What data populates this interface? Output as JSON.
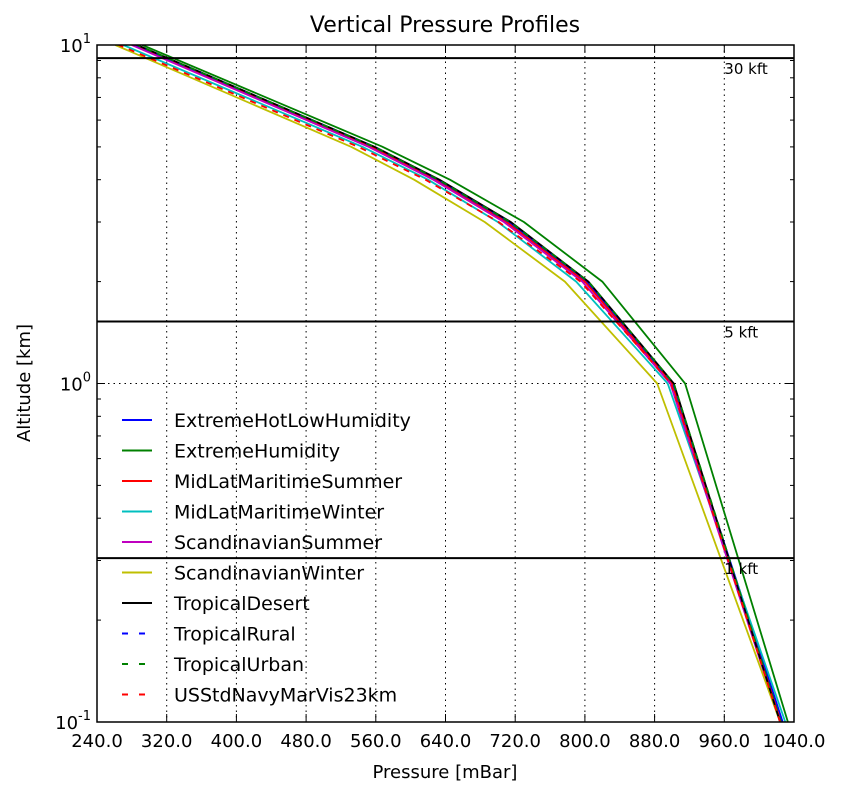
{
  "chart_data": {
    "type": "line",
    "title": "Vertical Pressure Profiles",
    "xlabel": "Pressure [mBar]",
    "ylabel": "Altitude [km]",
    "xlim": [
      240,
      1040
    ],
    "ylim": [
      0.1,
      10
    ],
    "yscale": "log",
    "grid": true,
    "legend_position": "lower-left",
    "x_ticks": [
      240,
      320,
      400,
      480,
      560,
      640,
      720,
      800,
      880,
      960,
      1040
    ],
    "x_tick_labels": [
      "240.0",
      "320.0",
      "400.0",
      "480.0",
      "560.0",
      "640.0",
      "720.0",
      "800.0",
      "880.0",
      "960.0",
      "1040.0"
    ],
    "y_ticks": [
      {
        "value": 0.1,
        "base": "10",
        "exp": "-1"
      },
      {
        "value": 1,
        "base": "10",
        "exp": "0"
      },
      {
        "value": 10,
        "base": "10",
        "exp": "1"
      }
    ],
    "hlines": [
      {
        "y": 9.144,
        "label": "30 kft"
      },
      {
        "y": 1.524,
        "label": "5 kft"
      },
      {
        "y": 0.3048,
        "label": "1 kft"
      }
    ],
    "series": [
      {
        "name": "ExtremeHotLowHumidity",
        "color": "#0000ff",
        "dash": "solid",
        "points": [
          [
            1027,
            0.1
          ],
          [
            900,
            1
          ],
          [
            802,
            2
          ],
          [
            712,
            3
          ],
          [
            630,
            4
          ],
          [
            557,
            5
          ],
          [
            283,
            10
          ]
        ]
      },
      {
        "name": "ExtremeHumidity",
        "color": "#008000",
        "dash": "solid",
        "points": [
          [
            1033,
            0.1
          ],
          [
            915,
            1
          ],
          [
            820,
            2
          ],
          [
            730,
            3
          ],
          [
            645,
            4
          ],
          [
            568,
            5
          ],
          [
            292,
            10
          ]
        ]
      },
      {
        "name": "MidLatMaritimeSummer",
        "color": "#ff0000",
        "dash": "solid",
        "points": [
          [
            1025,
            0.1
          ],
          [
            900,
            1
          ],
          [
            800,
            2
          ],
          [
            710,
            3
          ],
          [
            628,
            4
          ],
          [
            555,
            5
          ],
          [
            283,
            10
          ]
        ]
      },
      {
        "name": "MidLatMaritimeWinter",
        "color": "#00bfbf",
        "dash": "solid",
        "points": [
          [
            1030,
            0.1
          ],
          [
            895,
            1
          ],
          [
            790,
            2
          ],
          [
            700,
            3
          ],
          [
            620,
            4
          ],
          [
            545,
            5
          ],
          [
            270,
            10
          ]
        ]
      },
      {
        "name": "ScandinavianSummer",
        "color": "#bf00bf",
        "dash": "solid",
        "points": [
          [
            1024,
            0.1
          ],
          [
            898,
            1
          ],
          [
            797,
            2
          ],
          [
            707,
            3
          ],
          [
            626,
            4
          ],
          [
            552,
            5
          ],
          [
            280,
            10
          ]
        ]
      },
      {
        "name": "ScandinavianWinter",
        "color": "#bfbf00",
        "dash": "solid",
        "points": [
          [
            1024,
            0.1
          ],
          [
            883,
            1
          ],
          [
            777,
            2
          ],
          [
            685,
            3
          ],
          [
            604,
            4
          ],
          [
            532,
            5
          ],
          [
            261,
            10
          ]
        ]
      },
      {
        "name": "TropicalDesert",
        "color": "#000000",
        "dash": "solid",
        "points": [
          [
            1024,
            0.1
          ],
          [
            902,
            1
          ],
          [
            804,
            2
          ],
          [
            715,
            3
          ],
          [
            633,
            4
          ],
          [
            559,
            5
          ],
          [
            286,
            10
          ]
        ]
      },
      {
        "name": "TropicalRural",
        "color": "#0000ff",
        "dash": "dashed",
        "points": [
          [
            1025,
            0.1
          ],
          [
            901,
            1
          ],
          [
            803,
            2
          ],
          [
            713,
            3
          ],
          [
            631,
            4
          ],
          [
            558,
            5
          ],
          [
            285,
            10
          ]
        ]
      },
      {
        "name": "TropicalUrban",
        "color": "#008000",
        "dash": "dashed",
        "points": [
          [
            1025,
            0.1
          ],
          [
            902,
            1
          ],
          [
            804,
            2
          ],
          [
            714,
            3
          ],
          [
            632,
            4
          ],
          [
            558,
            5
          ],
          [
            286,
            10
          ]
        ]
      },
      {
        "name": "USStdNavyMarVis23km",
        "color": "#ff0000",
        "dash": "dashed",
        "points": [
          [
            1024,
            0.1
          ],
          [
            899,
            1
          ],
          [
            795,
            2
          ],
          [
            701,
            3
          ],
          [
            617,
            4
          ],
          [
            540,
            5
          ],
          [
            265,
            10
          ]
        ]
      }
    ]
  }
}
